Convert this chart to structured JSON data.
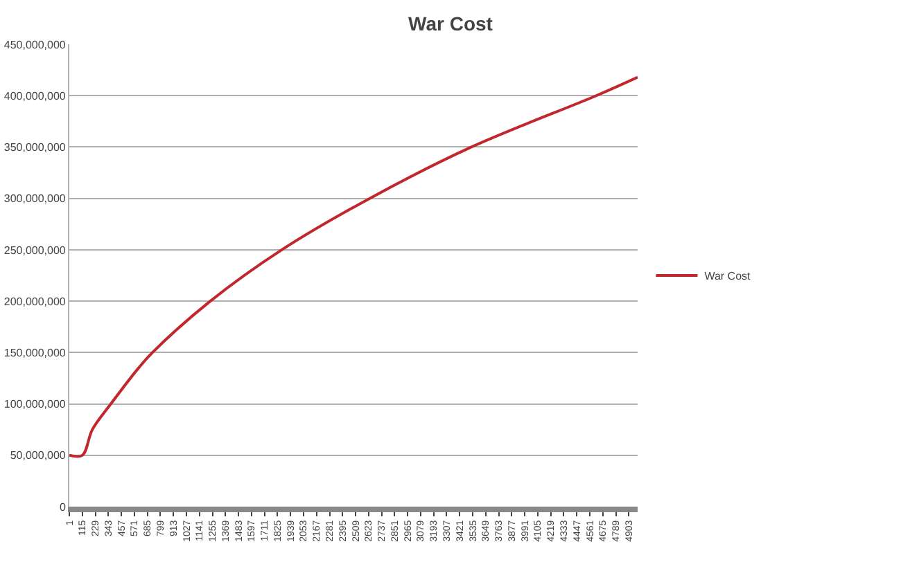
{
  "chart_data": {
    "type": "line",
    "title": "War Cost",
    "x": [
      1,
      115,
      203,
      365,
      608,
      729,
      1236,
      1863,
      2633,
      3524,
      4617,
      4980
    ],
    "series": [
      {
        "name": "War Cost",
        "color": "#c0282d",
        "values": [
          50000000,
          50000000,
          75000000,
          100000000,
          135000000,
          150000000,
          200000000,
          250000000,
          300000000,
          350000000,
          400000000,
          418000000
        ]
      }
    ],
    "xlim": [
      1,
      4980
    ],
    "xticks": [
      1,
      115,
      229,
      343,
      457,
      571,
      685,
      799,
      913,
      1027,
      1141,
      1255,
      1369,
      1483,
      1597,
      1711,
      1825,
      1939,
      2053,
      2167,
      2281,
      2395,
      2509,
      2623,
      2737,
      2851,
      2965,
      3079,
      3193,
      3307,
      3421,
      3535,
      3649,
      3763,
      3877,
      3991,
      4105,
      4219,
      4333,
      4447,
      4561,
      4675,
      4789,
      4903
    ],
    "ylim": [
      0,
      450000000
    ],
    "yticks": [
      0,
      {
        "value": 50000000,
        "label": "50,000,000"
      },
      {
        "value": 100000000,
        "label": "100,000,000"
      },
      {
        "value": 150000000,
        "label": "150,000,000"
      },
      {
        "value": 200000000,
        "label": "200,000,000"
      },
      {
        "value": 250000000,
        "label": "250,000,000"
      },
      {
        "value": 300000000,
        "label": "300,000,000"
      },
      {
        "value": 350000000,
        "label": "350,000,000"
      },
      {
        "value": 400000000,
        "label": "400,000,000"
      },
      {
        "value": 450000000,
        "label": "450,000,000"
      }
    ],
    "grid": "y",
    "legend": "right",
    "marker": "none",
    "line_style": "solid"
  }
}
